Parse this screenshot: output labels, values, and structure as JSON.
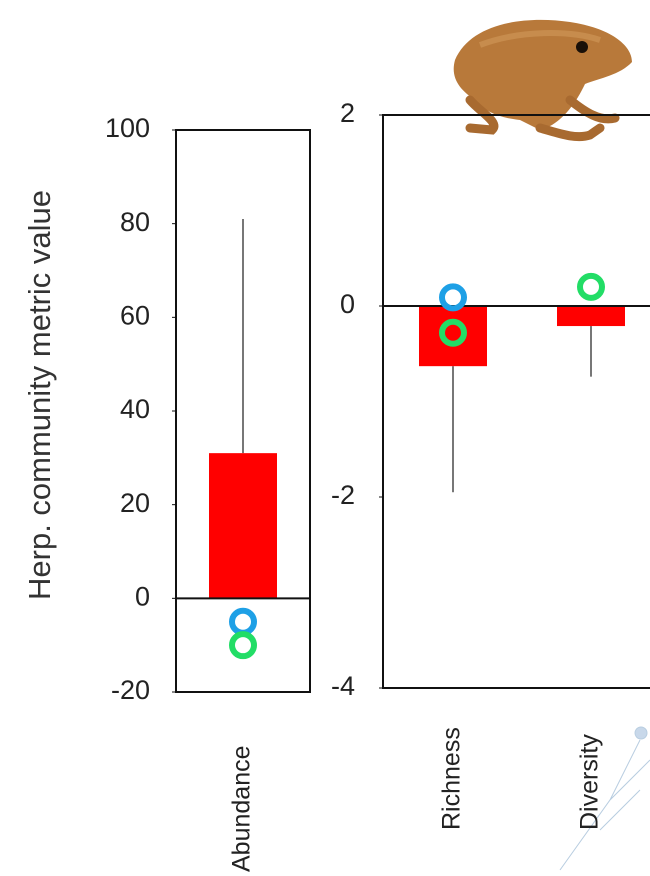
{
  "chart_data": [
    {
      "type": "bar",
      "ylabel": "Herp. community metric value",
      "categories": [
        "Abundance"
      ],
      "values": [
        31
      ],
      "color": "#ff0000",
      "whisker_ends": [
        81
      ],
      "points": [
        {
          "color": "#1ea0e6",
          "values": [
            -5
          ]
        },
        {
          "color": "#22dd66",
          "values": [
            -10
          ]
        }
      ],
      "ylim": [
        -20,
        100
      ],
      "yticks": [
        -20,
        0,
        20,
        40,
        60,
        80,
        100
      ]
    },
    {
      "type": "bar",
      "categories": [
        "Richness",
        "Diversity"
      ],
      "values": [
        -0.63,
        -0.21
      ],
      "color": "#ff0000",
      "whisker_ends": [
        -1.95,
        -0.74
      ],
      "points": [
        {
          "color": "#1ea0e6",
          "values": [
            0.09,
            null
          ]
        },
        {
          "color": "#22dd66",
          "values": [
            -0.28,
            0.2
          ]
        }
      ],
      "ylim": [
        -4,
        2
      ],
      "yticks": [
        -4,
        -2,
        0,
        2
      ]
    }
  ]
}
